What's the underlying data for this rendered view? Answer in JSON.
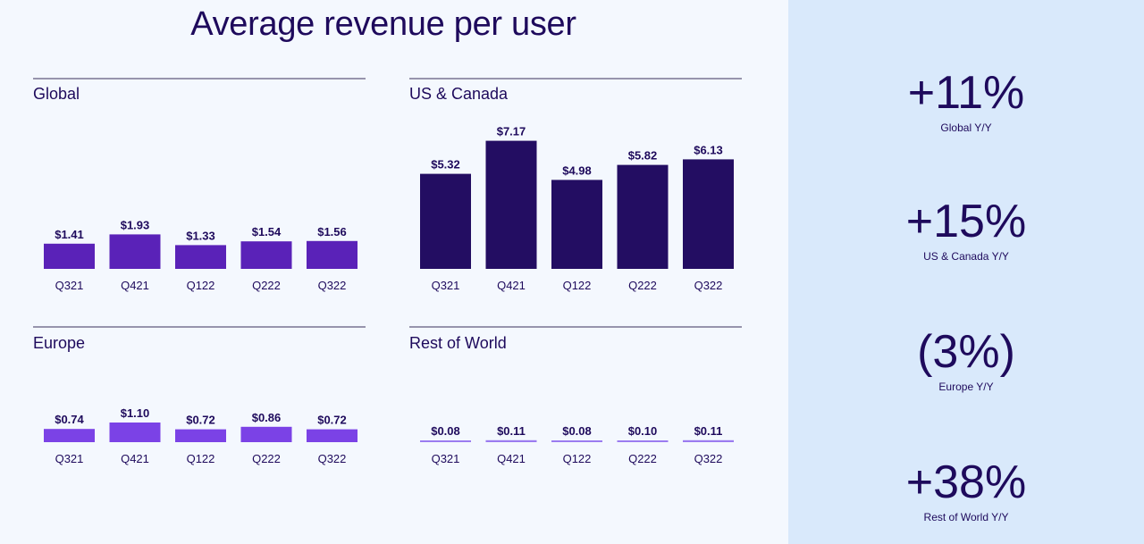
{
  "page_title": "Average revenue per user",
  "colors": {
    "global": "#5a22b8",
    "us_canada": "#230d62",
    "europe": "#7b42e6",
    "rest_of_world": "#9b7cf0",
    "text": "#1e0a5c",
    "sidebar_bg": "#d9e9fb"
  },
  "chart_data": [
    {
      "type": "bar",
      "title": "Global",
      "categories": [
        "Q321",
        "Q421",
        "Q122",
        "Q222",
        "Q322"
      ],
      "values": [
        1.41,
        1.93,
        1.33,
        1.54,
        1.56
      ],
      "value_labels": [
        "$1.41",
        "$1.93",
        "$1.33",
        "$1.54",
        "$1.56"
      ],
      "color": "#5a22b8"
    },
    {
      "type": "bar",
      "title": "US & Canada",
      "categories": [
        "Q321",
        "Q421",
        "Q122",
        "Q222",
        "Q322"
      ],
      "values": [
        5.32,
        7.17,
        4.98,
        5.82,
        6.13
      ],
      "value_labels": [
        "$5.32",
        "$7.17",
        "$4.98",
        "$5.82",
        "$6.13"
      ],
      "color": "#230d62"
    },
    {
      "type": "bar",
      "title": "Europe",
      "categories": [
        "Q321",
        "Q421",
        "Q122",
        "Q222",
        "Q322"
      ],
      "values": [
        0.74,
        1.1,
        0.72,
        0.86,
        0.72
      ],
      "value_labels": [
        "$0.74",
        "$1.10",
        "$0.72",
        "$0.86",
        "$0.72"
      ],
      "color": "#7b42e6"
    },
    {
      "type": "bar",
      "title": "Rest of World",
      "categories": [
        "Q321",
        "Q421",
        "Q122",
        "Q222",
        "Q322"
      ],
      "values": [
        0.08,
        0.11,
        0.08,
        0.1,
        0.11
      ],
      "value_labels": [
        "$0.08",
        "$0.11",
        "$0.08",
        "$0.10",
        "$0.11"
      ],
      "color": "#9b7cf0"
    }
  ],
  "yoy": [
    {
      "value": "+11%",
      "label": "Global Y/Y"
    },
    {
      "value": "+15%",
      "label": "US & Canada Y/Y"
    },
    {
      "value": "(3%)",
      "label": "Europe Y/Y"
    },
    {
      "value": "+38%",
      "label": "Rest of World Y/Y"
    }
  ]
}
